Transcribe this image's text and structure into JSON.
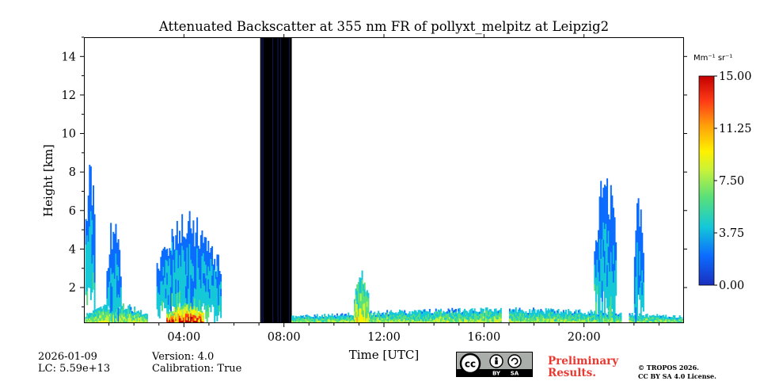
{
  "colors": {
    "accent_red": "#e8382f",
    "colormap": [
      "#1a2fbf",
      "#0b6cff",
      "#14c8d8",
      "#58e07a",
      "#c8f23a",
      "#fff100",
      "#ffa20a",
      "#ff3b16",
      "#c30000"
    ]
  },
  "chart_data": {
    "type": "heatmap",
    "title": "Attenuated Backscatter at 355 nm FR of pollyxt_melpitz at Leipzig2",
    "xlabel": "Time [UTC]",
    "ylabel": "Height [km]",
    "xlim": [
      0,
      24
    ],
    "ylim": [
      0.15,
      15
    ],
    "x_ticks": [
      4,
      8,
      12,
      16,
      20
    ],
    "x_ticklabels": [
      "04:00",
      "08:00",
      "12:00",
      "16:00",
      "20:00"
    ],
    "y_ticks": [
      2,
      4,
      6,
      8,
      10,
      12,
      14
    ],
    "y_ticklabels": [
      "2",
      "4",
      "6",
      "8",
      "10",
      "12",
      "14"
    ],
    "colorbar": {
      "unit_label": "Mm⁻¹ sr⁻¹",
      "range": [
        0,
        15
      ],
      "ticks": [
        0,
        3.75,
        7.5,
        11.25,
        15
      ],
      "ticklabels": [
        "0.00",
        "3.75",
        "7.50",
        "11.25",
        "15.00"
      ]
    },
    "data_gaps_hours": [
      [
        2.55,
        2.85
      ],
      [
        6.55,
        6.9
      ],
      [
        16.7,
        17.0
      ],
      [
        21.5,
        21.8
      ]
    ],
    "saturated_block_hours": [
      7.05,
      8.3
    ],
    "layers": [
      {
        "t": [
          0.05,
          2.55
        ],
        "top": 1.15,
        "level": 6.5,
        "note": "boundary layer"
      },
      {
        "t": [
          0.05,
          0.45
        ],
        "top": 8.6,
        "level": 3.5,
        "note": "tall cloud"
      },
      {
        "t": [
          0.9,
          1.5
        ],
        "top": 5.5,
        "level": 3,
        "note": "cloud"
      },
      {
        "t": [
          2.9,
          5.5
        ],
        "top": 5.5,
        "level": 3.5,
        "note": "cloud structure"
      },
      {
        "t": [
          3.3,
          4.8
        ],
        "top": 1.2,
        "level": 12,
        "note": "strong backscatter near 1 km"
      },
      {
        "t": [
          8.3,
          24
        ],
        "top": 0.9,
        "level": 6,
        "note": "boundary layer"
      },
      {
        "t": [
          10.8,
          11.4
        ],
        "top": 2.7,
        "level": 7,
        "note": "convective plume"
      },
      {
        "t": [
          20.4,
          21.3
        ],
        "top": 7.8,
        "level": 3.5,
        "note": "cloud"
      },
      {
        "t": [
          22.0,
          22.4
        ],
        "top": 6.9,
        "level": 3,
        "note": "cloud"
      }
    ]
  },
  "footer": {
    "date": "2026-01-09",
    "lc": "LC: 5.59e+13",
    "version": "Version: 4.0",
    "calibration": "Calibration: True",
    "license_by": "BY",
    "license_sa": "SA",
    "prelim_1": "Preliminary",
    "prelim_2": "Results.",
    "copyright_1": "© TROPOS 2026.",
    "copyright_2": "CC BY SA 4.0 License."
  }
}
